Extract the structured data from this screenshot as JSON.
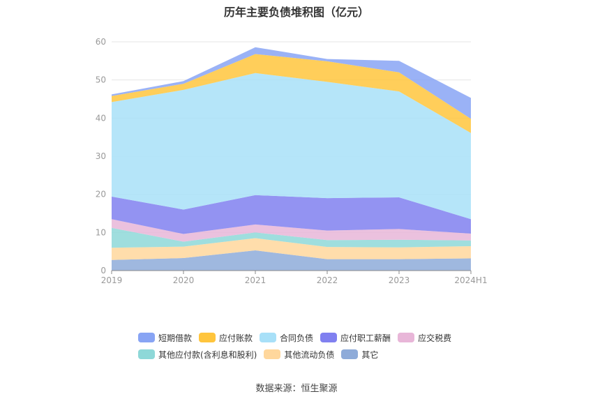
{
  "title": "历年主要负债堆积图（亿元）",
  "source": "数据来源：恒生聚源",
  "chart_data": {
    "type": "area",
    "stacked": true,
    "categories": [
      "2019",
      "2020",
      "2021",
      "2022",
      "2023",
      "2024H1"
    ],
    "ylim": [
      0,
      60
    ],
    "yticks": [
      "0",
      "10",
      "20",
      "30",
      "40",
      "50",
      "60"
    ],
    "grid": true,
    "legend_position": "bottom",
    "series": [
      {
        "name": "其它",
        "color": "#8eabd9",
        "values": [
          2.8,
          3.3,
          5.3,
          3.0,
          3.0,
          3.2
        ]
      },
      {
        "name": "其他流动负债",
        "color": "#ffd79c",
        "values": [
          3.2,
          3.0,
          3.2,
          3.2,
          3.1,
          3.2
        ]
      },
      {
        "name": "其他应付款(含利息和股利)",
        "color": "#8ed8d8",
        "values": [
          5.2,
          1.3,
          1.5,
          1.8,
          2.0,
          1.5
        ]
      },
      {
        "name": "应交税费",
        "color": "#e8b6d8",
        "values": [
          2.3,
          2.0,
          2.1,
          2.5,
          2.8,
          1.8
        ]
      },
      {
        "name": "应付职工薪酬",
        "color": "#8080f0",
        "values": [
          5.9,
          6.4,
          7.7,
          8.5,
          8.3,
          3.8
        ]
      },
      {
        "name": "合同负债",
        "color": "#a8e0f8",
        "values": [
          24.8,
          31.4,
          32.0,
          30.5,
          27.8,
          22.6
        ]
      },
      {
        "name": "应付账款",
        "color": "#ffc53d",
        "values": [
          1.6,
          1.6,
          5.0,
          5.4,
          5.0,
          3.7
        ]
      },
      {
        "name": "短期借款",
        "color": "#88a4f4",
        "values": [
          0.4,
          0.7,
          1.8,
          0.6,
          3.0,
          5.5
        ]
      }
    ],
    "legend_rows": [
      [
        "短期借款",
        "应付账款",
        "合同负债",
        "应付职工薪酬",
        "应交税费"
      ],
      [
        "其他应付款(含利息和股利)",
        "其他流动负债",
        "其它"
      ]
    ]
  }
}
